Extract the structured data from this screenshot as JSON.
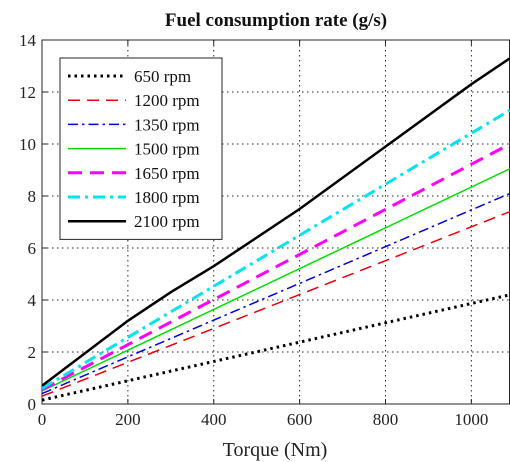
{
  "chart_data": {
    "type": "line",
    "title": "Fuel consumption rate (g/s)",
    "xlabel": "Torque (Nm)",
    "ylabel": "",
    "xlim": [
      0,
      1090
    ],
    "ylim": [
      0,
      14
    ],
    "xticks": [
      0,
      200,
      400,
      600,
      800,
      1000
    ],
    "yticks": [
      0,
      2,
      4,
      6,
      8,
      10,
      12,
      14
    ],
    "grid": true,
    "legend_position": "top-left",
    "series": [
      {
        "name": "650 rpm",
        "color": "#000000",
        "dash": "dotted",
        "width": 3,
        "x": [
          0,
          1090
        ],
        "y": [
          0.15,
          4.2
        ]
      },
      {
        "name": "1200 rpm",
        "color": "#e8000b",
        "dash": "dashed",
        "width": 1.5,
        "x": [
          0,
          1090
        ],
        "y": [
          0.3,
          7.4
        ]
      },
      {
        "name": "1350 rpm",
        "color": "#0000e0",
        "dash": "dashdot",
        "width": 1.5,
        "x": [
          0,
          1090
        ],
        "y": [
          0.4,
          8.1
        ]
      },
      {
        "name": "1500 rpm",
        "color": "#00e000",
        "dash": "solid",
        "width": 1.5,
        "x": [
          0,
          1090
        ],
        "y": [
          0.5,
          9.05
        ]
      },
      {
        "name": "1650 rpm",
        "color": "#ff00ff",
        "dash": "dashed",
        "width": 3,
        "x": [
          0,
          1090
        ],
        "y": [
          0.55,
          10.0
        ]
      },
      {
        "name": "1800 rpm",
        "color": "#00e5ee",
        "dash": "dashdot",
        "width": 3,
        "x": [
          0,
          1090
        ],
        "y": [
          0.6,
          11.3
        ]
      },
      {
        "name": "2100 rpm",
        "color": "#000000",
        "dash": "solid",
        "width": 2.5,
        "x": [
          0,
          200,
          300,
          400,
          600,
          800,
          1000,
          1090
        ],
        "y": [
          0.7,
          3.2,
          4.3,
          5.3,
          7.5,
          9.9,
          12.3,
          13.3
        ]
      }
    ]
  }
}
